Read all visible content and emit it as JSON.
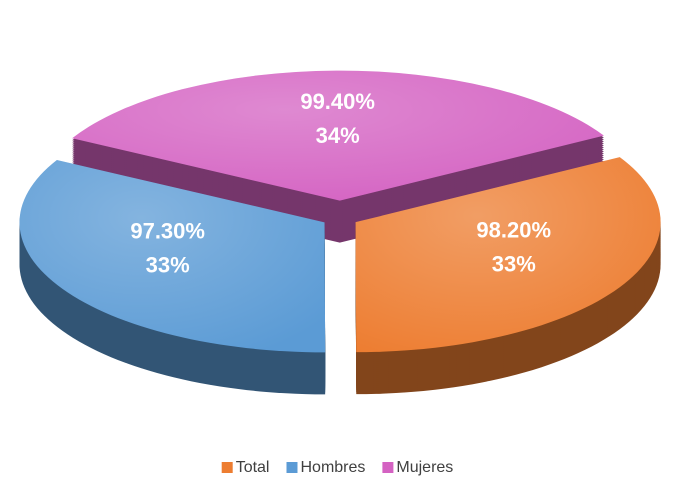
{
  "chart_data": {
    "type": "pie3d",
    "categories": [
      "Total",
      "Hombres",
      "Mujeres"
    ],
    "values": [
      98.2,
      97.3,
      99.4
    ],
    "value_labels": [
      "98.20%",
      "97.30%",
      "99.40%"
    ],
    "percent_labels": [
      "33%",
      "33%",
      "34%"
    ],
    "colors": [
      "#ed7d31",
      "#5b9bd5",
      "#d462c2"
    ],
    "legend": "bottom"
  }
}
